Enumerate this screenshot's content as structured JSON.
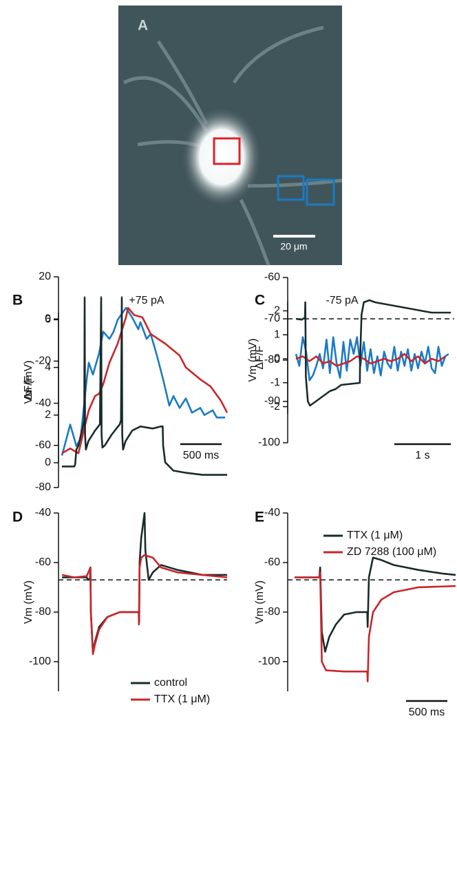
{
  "panel_a": {
    "label": "A",
    "scale_bar": "20 μm"
  },
  "chart_data": [
    {
      "type": "line",
      "panel": "B",
      "title": "+75 pA",
      "ylabel": "ΔF/F",
      "xlim": [
        0,
        2000
      ],
      "ylim": [
        0,
        6.3
      ],
      "yticks": [
        0,
        2,
        4,
        6
      ],
      "scale_bar": {
        "label": "500 ms",
        "value": 500
      },
      "series": [
        {
          "color": "#1a7ac4",
          "x": [
            0,
            100,
            175,
            225,
            300,
            325,
            375,
            450,
            500,
            575,
            625,
            675,
            775,
            850,
            925,
            950,
            1025,
            1075,
            1150,
            1225,
            1300,
            1350,
            1425,
            1500,
            1575,
            1675,
            1725,
            1825,
            1875,
            1975
          ],
          "values": [
            0.3,
            1.6,
            0.7,
            1.0,
            3.5,
            4.2,
            3.7,
            4.6,
            5.5,
            5.2,
            5.5,
            6.0,
            6.5,
            6.1,
            5.6,
            5.9,
            5.2,
            5.4,
            4.5,
            3.5,
            2.4,
            2.8,
            2.3,
            2.7,
            2.1,
            2.3,
            2.0,
            2.2,
            1.9,
            1.9
          ]
        },
        {
          "color": "#c8262b",
          "x": [
            0,
            100,
            200,
            275,
            325,
            400,
            450,
            500,
            575,
            675,
            775,
            800,
            875,
            975,
            1075,
            1250,
            1425,
            1500,
            1675,
            1800,
            1925,
            2000
          ],
          "values": [
            0.4,
            0.6,
            0.4,
            1.5,
            2.2,
            2.8,
            2.9,
            3.3,
            4.2,
            5.0,
            6.1,
            6.5,
            6.2,
            6.1,
            5.4,
            5.0,
            4.5,
            4.0,
            3.5,
            3.2,
            2.6,
            2.1
          ]
        }
      ]
    },
    {
      "type": "line",
      "ylabel": "Vm (mV)",
      "xlim": [
        0,
        2000
      ],
      "ylim": [
        -80,
        20
      ],
      "yticks": [
        20,
        0,
        -20,
        -40,
        -60,
        -80
      ],
      "series": [
        {
          "color": "#1a2a2a",
          "x": [
            0,
            150,
            160,
            175,
            200,
            260,
            270,
            275,
            280,
            290,
            320,
            400,
            460,
            475,
            480,
            490,
            520,
            600,
            700,
            715,
            725,
            730,
            740,
            770,
            850,
            950,
            1100,
            1200,
            1220,
            1225,
            1250,
            1350,
            1500,
            1700,
            2000
          ],
          "values": [
            -70,
            -70,
            -69,
            -62,
            -60,
            -50,
            -48,
            10,
            -55,
            -62,
            -58,
            -53,
            -50,
            10,
            -55,
            -61,
            -60,
            -55,
            -50,
            -48,
            10,
            -55,
            -62,
            -58,
            -53,
            -51,
            -52,
            -51,
            -51,
            -60,
            -68,
            -72,
            -73,
            -74,
            -74
          ]
        }
      ]
    },
    {
      "type": "line",
      "panel": "C",
      "title": "-75 pA",
      "ylabel": "ΔF/F",
      "xlim": [
        0,
        2800
      ],
      "ylim": [
        -2.3,
        2.4
      ],
      "yticks": [
        2,
        1,
        0,
        -1,
        -2
      ],
      "scale_bar": {
        "label": "1 s",
        "value": 1000
      },
      "series": [
        {
          "color": "#1a7ac4",
          "x": [
            0,
            60,
            120,
            180,
            240,
            300,
            360,
            420,
            480,
            540,
            600,
            660,
            720,
            780,
            840,
            900,
            960,
            1020,
            1080,
            1140,
            1200,
            1260,
            1320,
            1380,
            1440,
            1500,
            1560,
            1620,
            1680,
            1740,
            1800,
            1860,
            1920,
            1980,
            2040,
            2100,
            2160,
            2220,
            2280,
            2340,
            2400,
            2460,
            2520,
            2580,
            2640,
            2700
          ],
          "values": [
            0.2,
            -0.3,
            0.9,
            0.3,
            -0.9,
            -0.7,
            -0.3,
            0.2,
            -0.4,
            0.8,
            -0.6,
            0.9,
            -0.2,
            -0.8,
            0.7,
            -0.5,
            0.8,
            0.2,
            0.9,
            -0.3,
            0.7,
            -0.5,
            0.4,
            -0.6,
            0.1,
            -0.7,
            0.3,
            -0.2,
            -0.4,
            0.5,
            -0.5,
            0.3,
            -0.3,
            0.4,
            -0.5,
            0.2,
            -0.4,
            0.3,
            -0.2,
            0.5,
            -0.4,
            -0.6,
            0.5,
            -0.3,
            0.1,
            0.2
          ]
        },
        {
          "color": "#c8262b",
          "x": [
            0,
            120,
            240,
            360,
            480,
            600,
            720,
            840,
            960,
            1080,
            1200,
            1320,
            1440,
            1560,
            1680,
            1800,
            1920,
            2040,
            2160,
            2280,
            2400,
            2520,
            2640
          ],
          "values": [
            0,
            0.1,
            -0.1,
            0.1,
            -0.2,
            -0.1,
            -0.3,
            -0.2,
            -0.1,
            0.1,
            0,
            -0.2,
            -0.1,
            0,
            -0.1,
            0,
            0.2,
            -0.1,
            0.1,
            -0.2,
            0,
            -0.1,
            0.1
          ]
        }
      ]
    },
    {
      "type": "line",
      "ylabel": "Vm (mV)",
      "xlim": [
        0,
        2800
      ],
      "ylim": [
        -100,
        -60
      ],
      "yticks": [
        -60,
        -70,
        -80,
        -90,
        -100
      ],
      "reference_line": -70,
      "series": [
        {
          "color": "#1a2a2a",
          "x": [
            0,
            100,
            150,
            160,
            165,
            175,
            210,
            250,
            300,
            400,
            500,
            600,
            700,
            800,
            1130,
            1135,
            1160,
            1200,
            1300,
            1400,
            1600,
            1800,
            2000,
            2200,
            2400,
            2600,
            2740
          ],
          "values": [
            -70,
            -70.2,
            -69.8,
            -70,
            -66,
            -84,
            -90,
            -91,
            -90.5,
            -89.5,
            -88.5,
            -87.5,
            -87,
            -86,
            -85.5,
            -80,
            -69,
            -66,
            -65.5,
            -66,
            -66.5,
            -67,
            -67.5,
            -68,
            -68.5,
            -68.5,
            -68.5
          ]
        }
      ]
    },
    {
      "type": "line",
      "panel": "D",
      "ylabel": "Vm (mV)",
      "xlim": [
        0,
        2000
      ],
      "ylim": [
        -112,
        -40
      ],
      "yticks": [
        -40,
        -60,
        -80,
        -100
      ],
      "reference_line": -67,
      "legend": "lower right",
      "series": [
        {
          "name": "control",
          "color": "#1a2a2a",
          "x": [
            0,
            300,
            320,
            340,
            345,
            350,
            375,
            400,
            450,
            550,
            700,
            930,
            935,
            940,
            960,
            1000,
            1010,
            1050,
            1100,
            1200,
            1400,
            1700,
            2000
          ],
          "values": [
            -66,
            -66,
            -67,
            -66.5,
            -62,
            -80,
            -96,
            -92,
            -86,
            -82,
            -80,
            -80,
            -84,
            -60,
            -50,
            -40,
            -55,
            -67,
            -64,
            -61,
            -63,
            -65,
            -65
          ]
        },
        {
          "name": "TTX (1 μM)",
          "color": "#c8262b",
          "x": [
            0,
            150,
            300,
            345,
            350,
            375,
            400,
            450,
            550,
            700,
            930,
            932,
            940,
            960,
            1000,
            1100,
            1200,
            1400,
            1700,
            2000
          ],
          "values": [
            -65,
            -66,
            -65.5,
            -62,
            -80,
            -97,
            -93,
            -87,
            -82,
            -80,
            -80,
            -85,
            -62,
            -58,
            -57,
            -58,
            -62,
            -64,
            -65,
            -66
          ]
        }
      ]
    },
    {
      "type": "line",
      "panel": "E",
      "ylabel": "Vm (mV)",
      "xlim": [
        0,
        1950
      ],
      "ylim": [
        -112,
        -40
      ],
      "yticks": [
        -40,
        -60,
        -80,
        -100
      ],
      "reference_line": -67,
      "legend": "upper right",
      "scale_bar": {
        "label": "500 ms",
        "value": 500
      },
      "series": [
        {
          "name": "TTX (1 μM)",
          "color": "#1a2a2a",
          "x": [
            0,
            300,
            310,
            330,
            370,
            420,
            500,
            600,
            750,
            880,
            885,
            900,
            950,
            1050,
            1200,
            1500,
            1800,
            1950
          ],
          "values": [
            -66,
            -66,
            -62,
            -88,
            -96,
            -90,
            -85,
            -81,
            -80,
            -80,
            -86,
            -66,
            -58,
            -59,
            -61,
            -63,
            -64.5,
            -65
          ]
        },
        {
          "name": "ZD 7288 (100 μM)",
          "color": "#c8262b",
          "x": [
            0,
            300,
            310,
            330,
            380,
            600,
            880,
            885,
            900,
            950,
            1050,
            1200,
            1500,
            1950
          ],
          "values": [
            -66,
            -66,
            -64,
            -100,
            -103.5,
            -104,
            -104,
            -108,
            -90,
            -80,
            -75,
            -72,
            -70,
            -69.5
          ]
        }
      ]
    }
  ]
}
